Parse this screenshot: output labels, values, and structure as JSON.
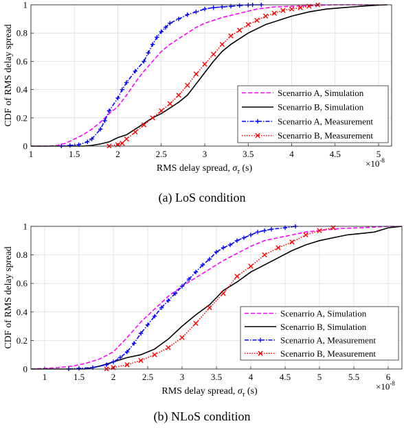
{
  "captions": [
    "(a)  LoS condition",
    "(b)  NLoS condition"
  ],
  "scale_label": "×10",
  "scale_exponent": "-8",
  "chart_data": [
    {
      "type": "line",
      "xlabel": "RMS delay spread, σ_τ (s)",
      "ylabel": "CDF of RMS delay spread",
      "xlim": [
        1.0,
        5.15
      ],
      "ylim": [
        0,
        1
      ],
      "xticks": [
        1,
        1.5,
        2,
        2.5,
        3,
        3.5,
        4,
        4.5,
        5
      ],
      "yticks": [
        0,
        0.2,
        0.4,
        0.6,
        0.8,
        1
      ],
      "grid": true,
      "legend_position": "bottom-right",
      "series": [
        {
          "name": "Scenarrio A, Simulation",
          "color": "#ff00ff",
          "style": "dashed",
          "marker": "none",
          "x": [
            1.0,
            1.2,
            1.3,
            1.4,
            1.5,
            1.6,
            1.7,
            1.8,
            1.9,
            2.0,
            2.1,
            2.2,
            2.3,
            2.4,
            2.5,
            2.6,
            2.7,
            2.8,
            2.9,
            3.0,
            3.2,
            3.4,
            3.6,
            3.8,
            4.0,
            4.5,
            5.0
          ],
          "y": [
            0.0,
            0.0,
            0.005,
            0.02,
            0.05,
            0.08,
            0.12,
            0.17,
            0.23,
            0.28,
            0.36,
            0.45,
            0.53,
            0.6,
            0.67,
            0.72,
            0.76,
            0.8,
            0.84,
            0.87,
            0.91,
            0.94,
            0.97,
            0.985,
            0.99,
            1.0,
            1.0
          ]
        },
        {
          "name": "Scenarrio B, Simulation",
          "color": "#000000",
          "style": "solid",
          "marker": "none",
          "x": [
            1.0,
            1.6,
            1.7,
            1.8,
            1.9,
            2.0,
            2.1,
            2.2,
            2.3,
            2.4,
            2.5,
            2.6,
            2.7,
            2.8,
            2.9,
            3.0,
            3.1,
            3.2,
            3.3,
            3.4,
            3.5,
            3.6,
            3.7,
            3.8,
            3.9,
            4.0,
            4.2,
            4.4,
            4.6,
            4.8,
            5.0,
            5.1
          ],
          "y": [
            0.0,
            0.0,
            0.005,
            0.015,
            0.03,
            0.06,
            0.08,
            0.12,
            0.16,
            0.2,
            0.23,
            0.27,
            0.31,
            0.36,
            0.44,
            0.52,
            0.6,
            0.67,
            0.72,
            0.76,
            0.8,
            0.83,
            0.86,
            0.88,
            0.9,
            0.92,
            0.95,
            0.97,
            0.98,
            0.99,
            0.998,
            1.0
          ]
        },
        {
          "name": "Scenarrio A, Measurement",
          "color": "#0000ff",
          "style": "dashdot",
          "marker": "plus",
          "x": [
            1.35,
            1.45,
            1.55,
            1.65,
            1.7,
            1.8,
            1.85,
            1.9,
            2.0,
            2.05,
            2.1,
            2.2,
            2.3,
            2.35,
            2.4,
            2.45,
            2.5,
            2.55,
            2.6,
            2.7,
            2.8,
            2.9,
            3.0,
            3.1,
            3.2,
            3.3,
            3.4,
            3.5,
            3.55,
            3.65
          ],
          "y": [
            0.0,
            0.005,
            0.01,
            0.03,
            0.05,
            0.12,
            0.18,
            0.25,
            0.34,
            0.4,
            0.45,
            0.53,
            0.6,
            0.66,
            0.72,
            0.77,
            0.81,
            0.84,
            0.87,
            0.9,
            0.93,
            0.95,
            0.97,
            0.98,
            0.985,
            0.99,
            0.995,
            0.998,
            1.0,
            1.0
          ]
        },
        {
          "name": "Scenarrio B, Measurement",
          "color": "#ff0000",
          "style": "dotted",
          "marker": "x",
          "x": [
            1.9,
            2.0,
            2.05,
            2.1,
            2.2,
            2.3,
            2.4,
            2.5,
            2.6,
            2.7,
            2.8,
            2.9,
            3.0,
            3.1,
            3.2,
            3.3,
            3.4,
            3.5,
            3.6,
            3.7,
            3.8,
            3.9,
            4.0,
            4.1,
            4.2,
            4.3
          ],
          "y": [
            0.0,
            0.01,
            0.02,
            0.05,
            0.1,
            0.15,
            0.2,
            0.25,
            0.3,
            0.36,
            0.43,
            0.51,
            0.58,
            0.65,
            0.72,
            0.78,
            0.82,
            0.86,
            0.89,
            0.92,
            0.94,
            0.96,
            0.97,
            0.98,
            0.99,
            1.0
          ]
        }
      ]
    },
    {
      "type": "line",
      "xlabel": "RMS delay spread, σ_τ (s)",
      "ylabel": "CDF of RMS delay spread",
      "xlim": [
        0.8,
        6.2
      ],
      "ylim": [
        0,
        1
      ],
      "xticks": [
        1,
        1.5,
        2,
        2.5,
        3,
        3.5,
        4,
        4.5,
        5,
        5.5,
        6
      ],
      "yticks": [
        0,
        0.2,
        0.4,
        0.6,
        0.8,
        1
      ],
      "grid": true,
      "legend_position": "bottom-right",
      "series": [
        {
          "name": "Scenarrio A, Simulation",
          "color": "#ff00ff",
          "style": "dashed",
          "marker": "none",
          "x": [
            0.8,
            1.0,
            1.2,
            1.4,
            1.6,
            1.8,
            2.0,
            2.2,
            2.4,
            2.6,
            2.8,
            3.0,
            3.2,
            3.4,
            3.6,
            3.8,
            4.0,
            4.2,
            4.4,
            4.6,
            4.8,
            5.0,
            5.3,
            5.6,
            6.0,
            6.2
          ],
          "y": [
            0.0,
            0.005,
            0.01,
            0.02,
            0.04,
            0.07,
            0.12,
            0.22,
            0.33,
            0.42,
            0.51,
            0.58,
            0.64,
            0.7,
            0.76,
            0.81,
            0.86,
            0.9,
            0.92,
            0.94,
            0.96,
            0.97,
            0.985,
            0.99,
            1.0,
            1.0
          ]
        },
        {
          "name": "Scenarrio B, Simulation",
          "color": "#000000",
          "style": "solid",
          "marker": "none",
          "x": [
            0.8,
            1.6,
            1.8,
            2.0,
            2.2,
            2.4,
            2.6,
            2.8,
            3.0,
            3.2,
            3.4,
            3.6,
            3.8,
            4.0,
            4.2,
            4.4,
            4.6,
            4.8,
            5.0,
            5.2,
            5.4,
            5.6,
            5.8,
            6.0,
            6.2
          ],
          "y": [
            0.0,
            0.0,
            0.02,
            0.05,
            0.08,
            0.1,
            0.14,
            0.21,
            0.3,
            0.38,
            0.45,
            0.55,
            0.61,
            0.68,
            0.73,
            0.78,
            0.83,
            0.87,
            0.9,
            0.92,
            0.94,
            0.95,
            0.96,
            0.99,
            1.0
          ]
        },
        {
          "name": "Scenarrio A, Measurement",
          "color": "#0000ff",
          "style": "dashdot",
          "marker": "plus",
          "x": [
            1.35,
            1.5,
            1.7,
            1.9,
            2.0,
            2.1,
            2.2,
            2.3,
            2.4,
            2.5,
            2.6,
            2.7,
            2.8,
            2.9,
            3.0,
            3.1,
            3.2,
            3.3,
            3.4,
            3.5,
            3.6,
            3.7,
            3.8,
            3.9,
            4.0,
            4.1,
            4.2,
            4.3,
            4.5,
            4.65
          ],
          "y": [
            0.0,
            0.005,
            0.01,
            0.03,
            0.05,
            0.08,
            0.12,
            0.18,
            0.25,
            0.31,
            0.37,
            0.43,
            0.48,
            0.53,
            0.58,
            0.63,
            0.68,
            0.73,
            0.77,
            0.82,
            0.85,
            0.87,
            0.9,
            0.92,
            0.94,
            0.96,
            0.97,
            0.98,
            0.99,
            1.0
          ]
        },
        {
          "name": "Scenarrio B, Measurement",
          "color": "#ff0000",
          "style": "dotted",
          "marker": "x",
          "x": [
            1.9,
            2.0,
            2.2,
            2.4,
            2.6,
            2.8,
            3.0,
            3.2,
            3.4,
            3.6,
            3.8,
            4.0,
            4.2,
            4.4,
            4.6,
            4.8,
            5.0,
            5.2
          ],
          "y": [
            0.0,
            0.01,
            0.03,
            0.06,
            0.1,
            0.15,
            0.22,
            0.32,
            0.43,
            0.53,
            0.65,
            0.72,
            0.8,
            0.85,
            0.89,
            0.94,
            0.97,
            0.99
          ]
        }
      ]
    }
  ]
}
